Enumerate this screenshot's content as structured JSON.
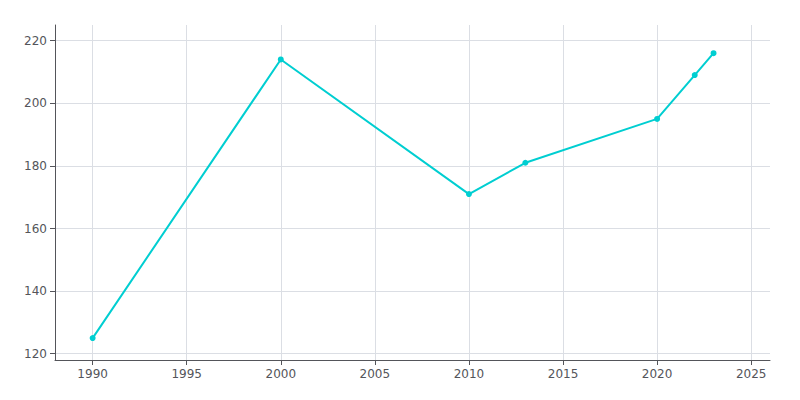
{
  "chart_data": {
    "type": "line",
    "x": [
      1990,
      2000,
      2010,
      2013,
      2020,
      2022,
      2023
    ],
    "values": [
      125,
      214,
      171,
      181,
      195,
      209,
      216
    ],
    "color": "#00CED1",
    "marker": "circle",
    "xlim": [
      1988,
      2026
    ],
    "xticks": [
      1990,
      1995,
      2000,
      2005,
      2010,
      2015,
      2020,
      2025
    ],
    "ylim": [
      118,
      225
    ],
    "yticks": [
      120,
      140,
      160,
      180,
      200,
      220
    ],
    "grid": true
  }
}
